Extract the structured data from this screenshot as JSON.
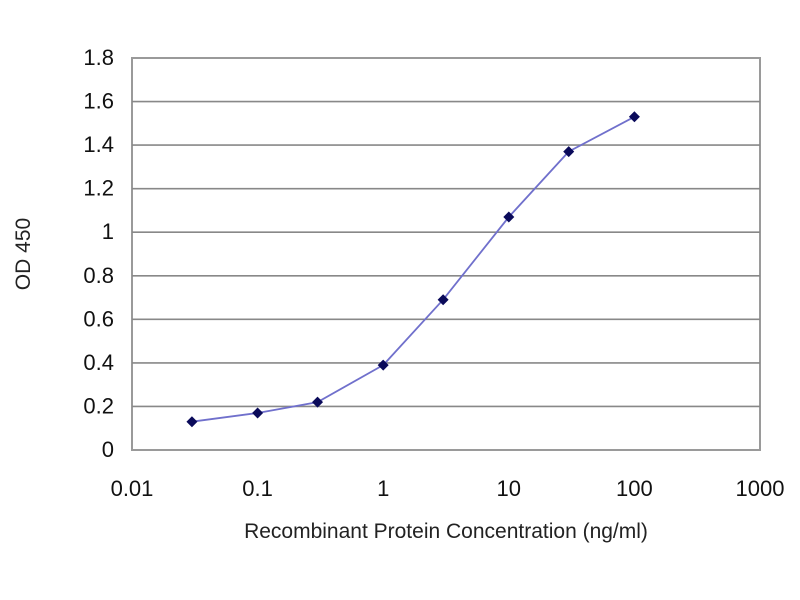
{
  "chart_data": {
    "type": "line",
    "title": "",
    "xlabel": "Recombinant Protein Concentration (ng/ml)",
    "ylabel": "OD 450",
    "x_scale": "log",
    "xlim": [
      0.01,
      1000
    ],
    "ylim": [
      0,
      1.8
    ],
    "x_ticks": [
      "0.01",
      "0.1",
      "1",
      "10",
      "100",
      "1000"
    ],
    "y_ticks": [
      "0",
      "0.2",
      "0.4",
      "0.6",
      "0.8",
      "1",
      "1.2",
      "1.4",
      "1.6",
      "1.8"
    ],
    "grid": "horizontal",
    "series": [
      {
        "x": [
          0.03,
          0.1,
          0.3,
          1,
          3,
          10,
          30,
          100
        ],
        "y": [
          0.13,
          0.17,
          0.22,
          0.39,
          0.69,
          1.07,
          1.37,
          1.53
        ]
      }
    ],
    "colors": {
      "line": "#7070cc",
      "marker": "#0a0a5a",
      "grid": "#888888",
      "frame": "#999999"
    }
  }
}
